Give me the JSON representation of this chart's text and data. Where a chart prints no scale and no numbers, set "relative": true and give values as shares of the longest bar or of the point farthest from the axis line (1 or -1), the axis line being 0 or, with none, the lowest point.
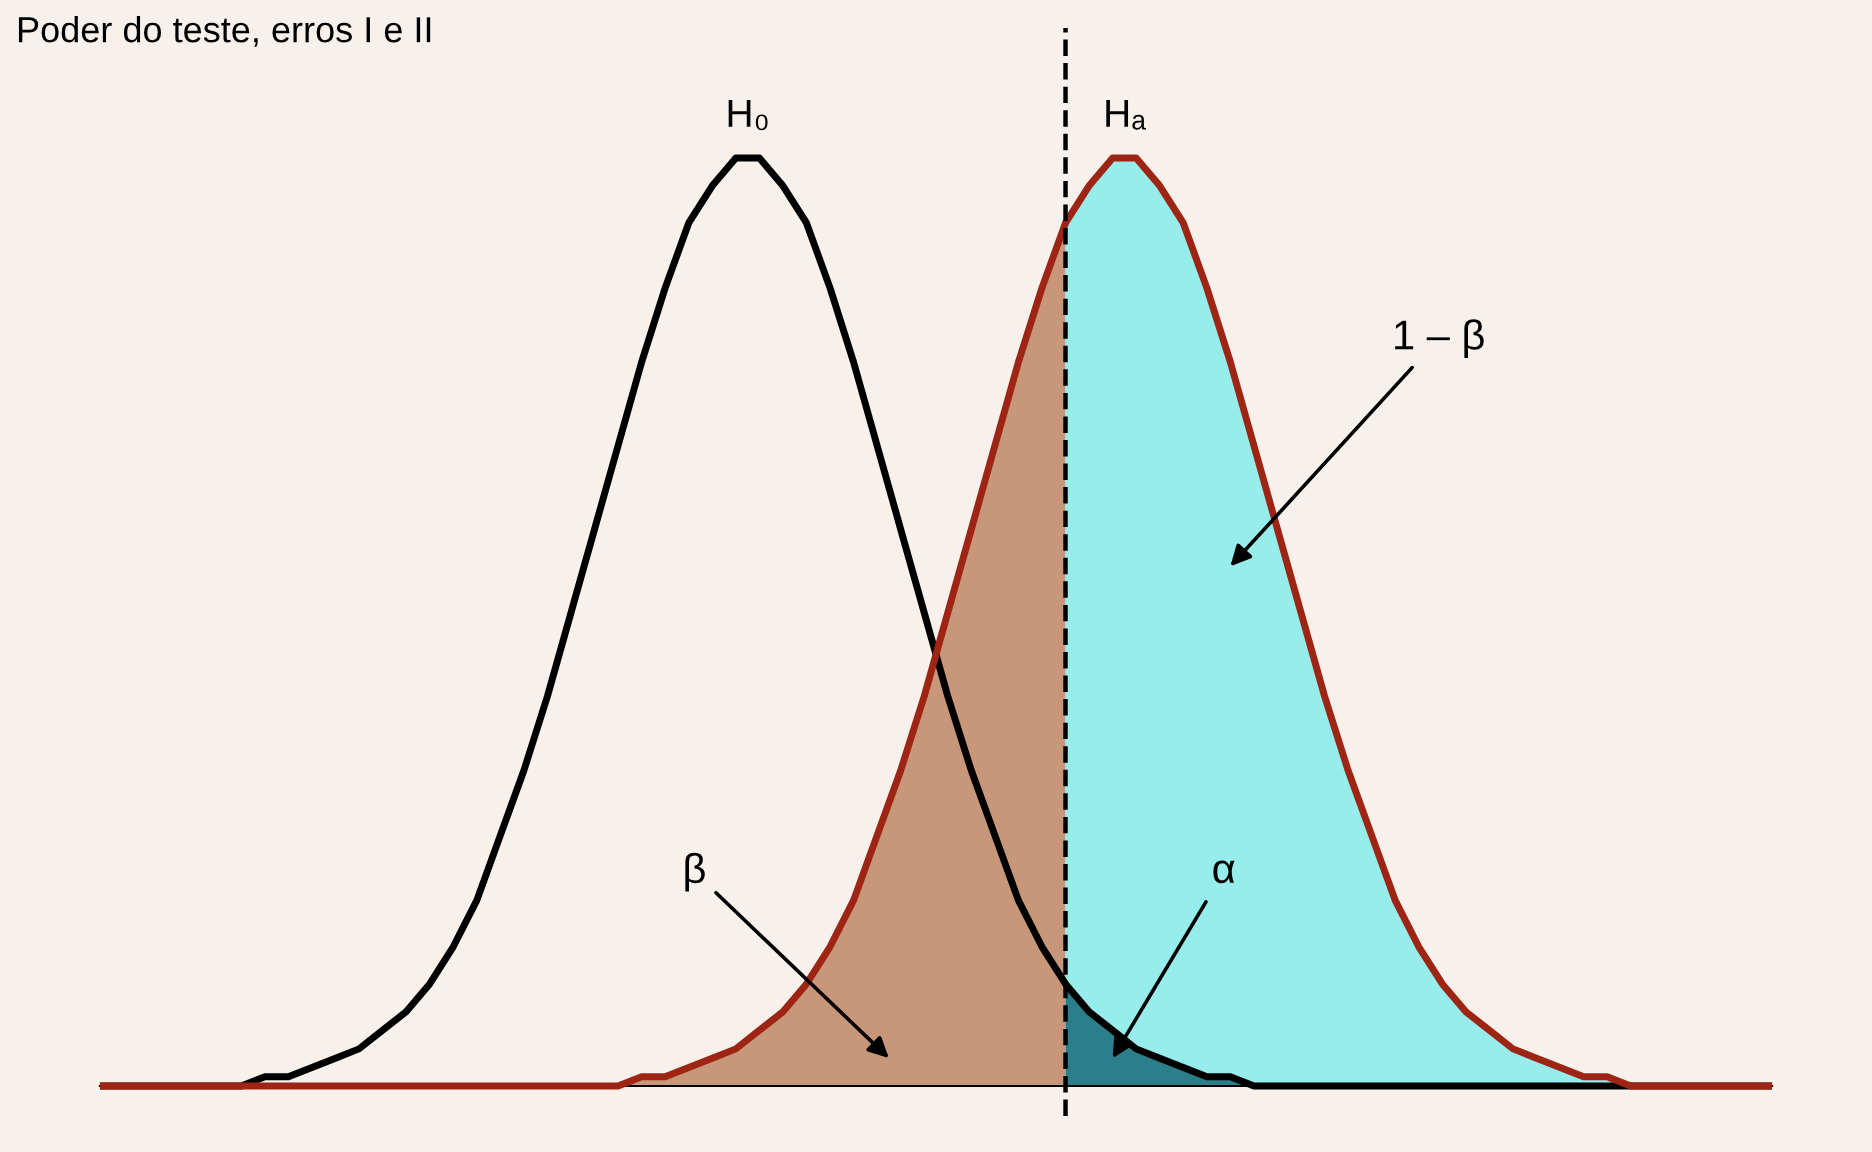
{
  "chart_data": {
    "type": "line",
    "title": "Poder do teste, erros I e II",
    "relative": true,
    "categories": [
      null,
      null,
      null,
      null,
      null,
      null,
      null,
      null,
      null,
      null,
      null,
      null,
      null,
      null,
      null,
      null,
      null,
      null,
      null,
      null,
      null,
      null,
      null,
      null,
      null,
      null,
      null,
      null,
      null,
      null,
      null,
      null,
      null,
      null,
      null,
      null,
      null,
      null,
      null,
      null,
      null,
      null,
      null,
      null,
      null,
      null,
      null,
      null,
      null,
      null,
      null,
      null,
      null,
      null,
      null,
      null,
      null,
      null,
      null,
      null,
      null,
      null,
      null,
      null,
      null,
      null,
      null,
      null,
      null,
      null,
      null,
      null
    ],
    "series": [
      {
        "type": "area",
        "color": "#c8977a",
        "values": [
          0,
          0,
          0,
          0,
          0,
          0,
          0,
          0,
          0,
          0,
          0,
          0,
          0,
          0,
          0,
          0,
          0,
          0,
          0,
          0,
          0,
          0,
          0,
          0.01,
          0.01,
          0.02,
          0.03,
          0.04,
          0.06,
          0.08,
          0.11,
          0.15,
          0.2,
          0.27,
          0.34,
          0.42,
          0.51,
          0.6,
          0.69,
          0.78,
          0.86,
          0.93,
          null,
          null,
          null,
          null,
          null,
          null,
          null,
          null,
          null,
          null,
          null,
          null,
          null,
          null,
          null,
          null,
          null,
          null,
          null,
          null,
          null,
          null,
          null,
          null,
          null,
          null,
          null,
          null,
          null,
          null
        ]
      },
      {
        "type": "area",
        "color": "#97ecec",
        "values": [
          null,
          null,
          null,
          null,
          null,
          null,
          null,
          null,
          null,
          null,
          null,
          null,
          null,
          null,
          null,
          null,
          null,
          null,
          null,
          null,
          null,
          null,
          null,
          null,
          null,
          null,
          null,
          null,
          null,
          null,
          null,
          null,
          null,
          null,
          null,
          null,
          null,
          null,
          null,
          null,
          null,
          0.93,
          0.97,
          1.0,
          1.0,
          0.97,
          0.93,
          0.86,
          0.78,
          0.69,
          0.6,
          0.51,
          0.42,
          0.34,
          0.27,
          0.2,
          0.15,
          0.11,
          0.08,
          0.06,
          0.04,
          0.03,
          0.02,
          0.01,
          0.01,
          0,
          0,
          0,
          0,
          0,
          0,
          0
        ]
      },
      {
        "type": "area",
        "color": "#2a7f8a",
        "values": [
          null,
          null,
          null,
          null,
          null,
          null,
          null,
          null,
          null,
          null,
          null,
          null,
          null,
          null,
          null,
          null,
          null,
          null,
          null,
          null,
          null,
          null,
          null,
          null,
          null,
          null,
          null,
          null,
          null,
          null,
          null,
          null,
          null,
          null,
          null,
          null,
          null,
          null,
          null,
          null,
          null,
          0.11,
          0.08,
          0.06,
          0.04,
          0.03,
          0.02,
          0.01,
          0.01,
          0,
          0,
          0,
          0,
          0,
          0,
          0,
          0,
          0,
          0,
          0,
          0,
          0,
          0,
          0,
          0,
          0,
          0,
          0,
          0,
          0,
          0,
          0
        ]
      },
      {
        "type": "line",
        "name": "H₀",
        "color": "#000000",
        "values": [
          0,
          0,
          0,
          0,
          0,
          0,
          0,
          0.01,
          0.01,
          0.02,
          0.03,
          0.04,
          0.06,
          0.08,
          0.11,
          0.15,
          0.2,
          0.27,
          0.34,
          0.42,
          0.51,
          0.6,
          0.69,
          0.78,
          0.86,
          0.93,
          0.97,
          1.0,
          1.0,
          0.97,
          0.93,
          0.86,
          0.78,
          0.69,
          0.6,
          0.51,
          0.42,
          0.34,
          0.27,
          0.2,
          0.15,
          0.11,
          0.08,
          0.06,
          0.04,
          0.03,
          0.02,
          0.01,
          0.01,
          0,
          0,
          0,
          0,
          0,
          0,
          0,
          0,
          0,
          0,
          0,
          0,
          0,
          0,
          0,
          0,
          0,
          0,
          0,
          0,
          0,
          0,
          0
        ]
      },
      {
        "type": "line",
        "name": "Hₐ",
        "color": "#9e2414",
        "values": [
          0,
          0,
          0,
          0,
          0,
          0,
          0,
          0,
          0,
          0,
          0,
          0,
          0,
          0,
          0,
          0,
          0,
          0,
          0,
          0,
          0,
          0,
          0,
          0.01,
          0.01,
          0.02,
          0.03,
          0.04,
          0.06,
          0.08,
          0.11,
          0.15,
          0.2,
          0.27,
          0.34,
          0.42,
          0.51,
          0.6,
          0.69,
          0.78,
          0.86,
          0.93,
          0.97,
          1.0,
          1.0,
          0.97,
          0.93,
          0.86,
          0.78,
          0.69,
          0.6,
          0.51,
          0.42,
          0.34,
          0.27,
          0.2,
          0.15,
          0.11,
          0.08,
          0.06,
          0.04,
          0.03,
          0.02,
          0.01,
          0.01,
          0,
          0,
          0,
          0,
          0,
          0,
          0
        ]
      }
    ],
    "annotations": [
      "β",
      "α",
      "1 – β"
    ]
  }
}
